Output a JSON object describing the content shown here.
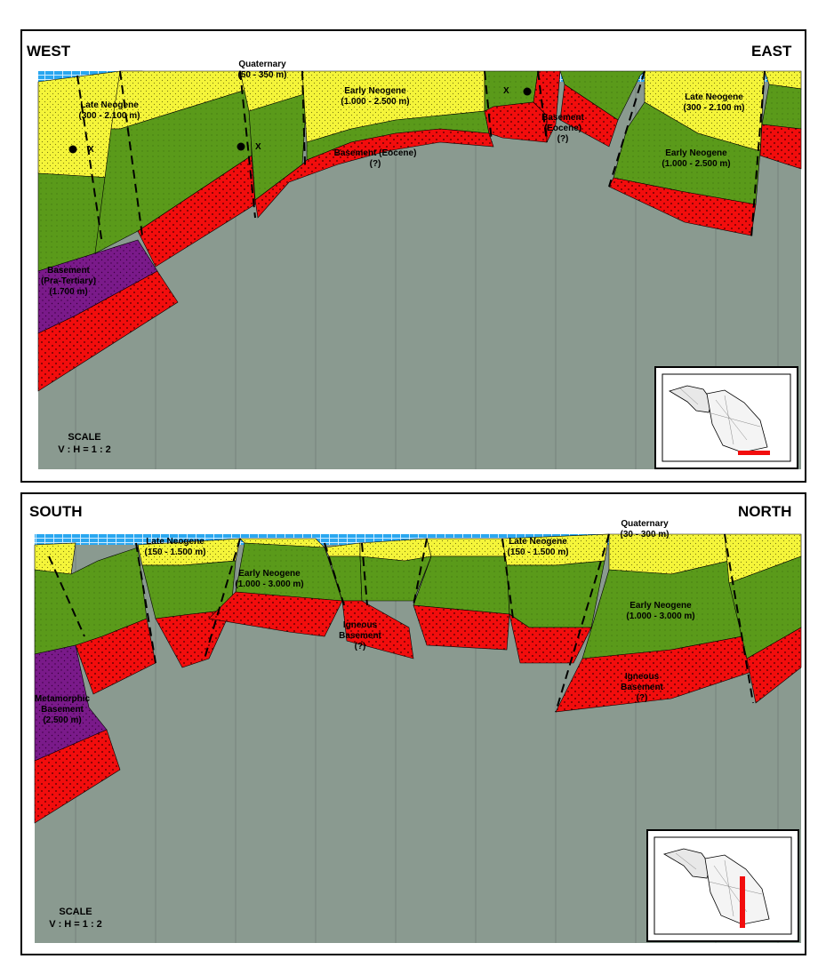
{
  "colors": {
    "basement_red": "#f20d0d",
    "early_neogene_green": "#5a9a1a",
    "late_neogene_yellow": "#f5f53a",
    "quaternary_blue": "#2aa7f0",
    "pretertiary_purple": "#7a1a8a",
    "background_gray": "#8a9a90"
  },
  "top_section": {
    "west_label": "WEST",
    "east_label": "EAST",
    "labels": {
      "quaternary": [
        "Quaternary",
        "(50 - 350 m)"
      ],
      "late_neogene_w": [
        "Late Neogene",
        "(300 - 2.100 m)"
      ],
      "early_neogene_c": [
        "Early Neogene",
        "(1.000 - 2.500 m)"
      ],
      "basement_eocene_c": [
        "Basement (Eocene)",
        "(?)"
      ],
      "basement_eocene_e": [
        "Basement",
        "(Eocene)",
        "(?)"
      ],
      "late_neogene_e": [
        "Late Neogene",
        "(300 - 2.100 m)"
      ],
      "early_neogene_e": [
        "Early Neogene",
        "(1.000 - 2.500 m)"
      ],
      "basement_pratertiary": [
        "Basement",
        "(Pra-Tertiary)",
        "(1.700 m)"
      ]
    },
    "well_marker": "X",
    "scale": [
      "SCALE",
      "V : H = 1 : 2"
    ]
  },
  "bottom_section": {
    "south_label": "SOUTH",
    "north_label": "NORTH",
    "labels": {
      "quaternary": [
        "Quaternary",
        "(30 - 300 m)"
      ],
      "late_neogene_w": [
        "Late Neogene",
        "(150 - 1.500 m)"
      ],
      "early_neogene_c": [
        "Early Neogene",
        "(1.000 - 3.000 m)"
      ],
      "igneous_c": [
        "Igneous",
        "Basement",
        "(?)"
      ],
      "late_neogene_c": [
        "Late Neogene",
        "(150 - 1.500 m)"
      ],
      "early_neogene_e": [
        "Early Neogene",
        "(1.000 - 3.000 m)"
      ],
      "igneous_e": [
        "Igneous",
        "Basement",
        "(?)"
      ],
      "metamorphic": [
        "Metamorphic",
        "Basement",
        "(2.500 m)"
      ]
    },
    "scale": [
      "SCALE",
      "V : H = 1 : 2"
    ]
  }
}
